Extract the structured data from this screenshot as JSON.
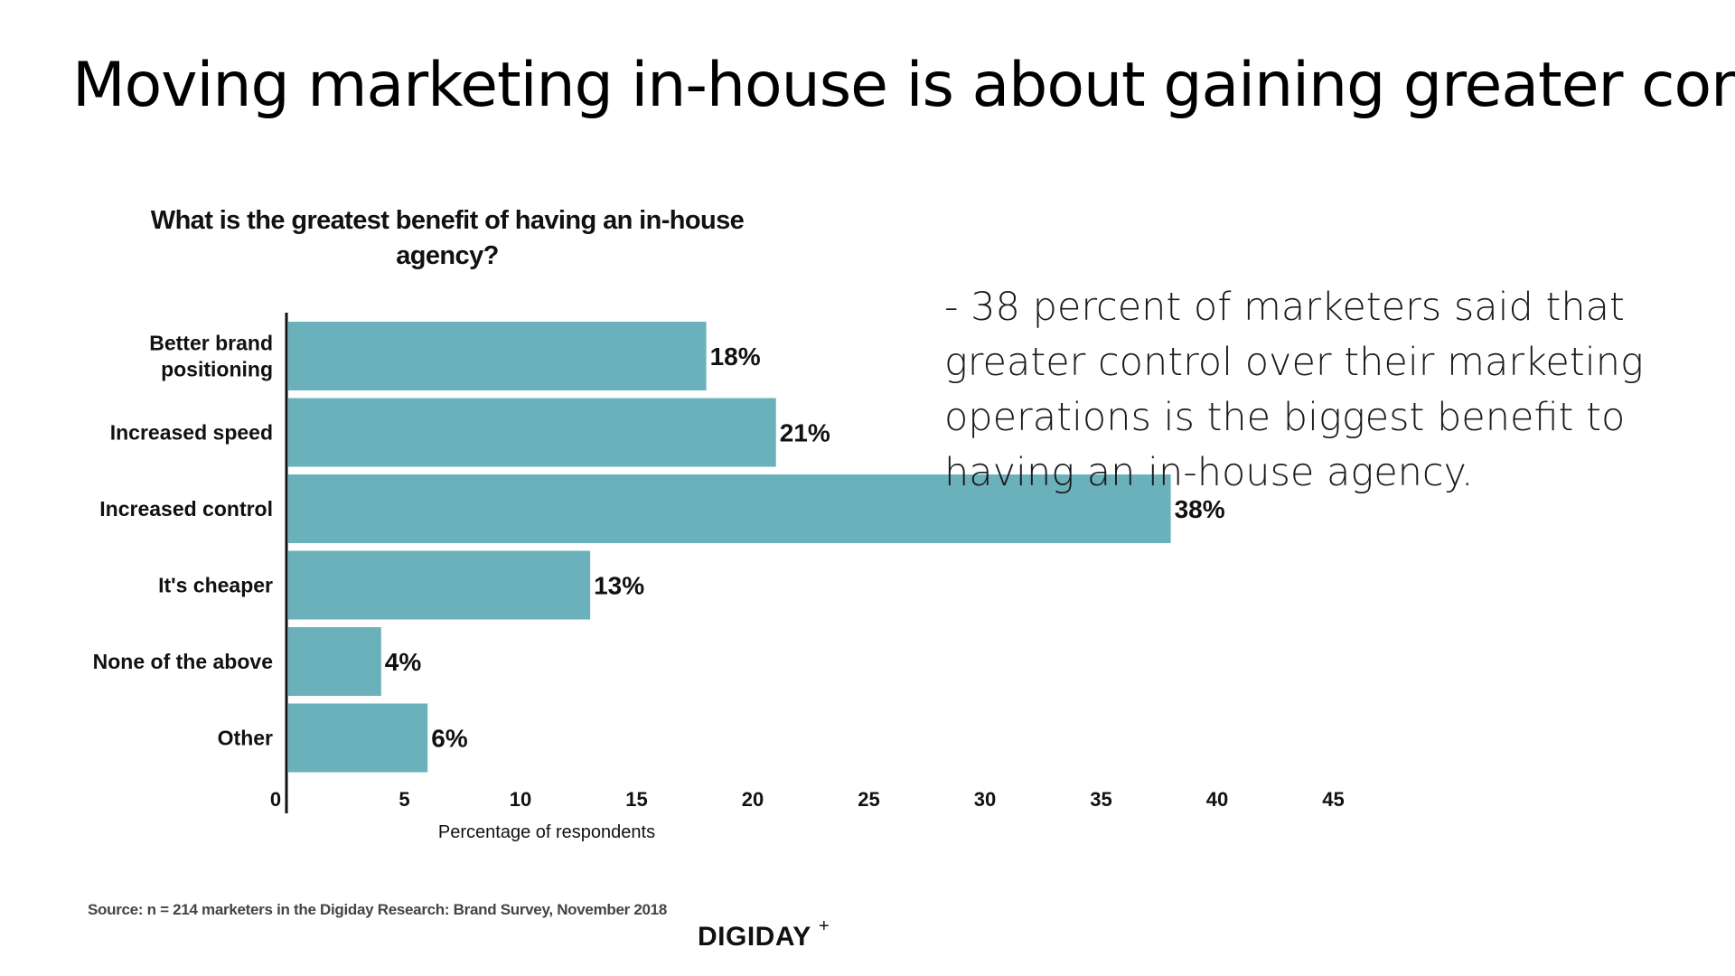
{
  "slide": {
    "title": "Moving marketing in-house is about gaining greater control",
    "bullet": "- 38 percent of marketers said that greater control over their marketing operations is the biggest benefit to having an in-house agency.",
    "source": "Source: n = 214 marketers in the Digiday Research: Brand Survey, November 2018",
    "logo": "DIGIDAY",
    "logo_plus": "+"
  },
  "colors": {
    "bar": "#6ab1bb",
    "axis": "#111111",
    "text": "#111111"
  },
  "chart_data": {
    "type": "bar",
    "orientation": "horizontal",
    "title": "What is the greatest benefit of having an in-house agency?",
    "title_lines": [
      "What is the greatest benefit of having an in-house",
      "agency?"
    ],
    "xlabel": "Percentage of respondents",
    "ylabel": "",
    "xlim": [
      0,
      45
    ],
    "xticks": [
      0,
      5,
      10,
      15,
      20,
      25,
      30,
      35,
      40,
      45
    ],
    "categories": [
      [
        "Better brand",
        "positioning"
      ],
      [
        "Increased speed"
      ],
      [
        "Increased control"
      ],
      [
        "It's cheaper"
      ],
      [
        "None of the above"
      ],
      [
        "Other"
      ]
    ],
    "values": [
      18,
      21,
      38,
      13,
      4,
      6
    ],
    "data_labels": [
      "18%",
      "21%",
      "38%",
      "13%",
      "4%",
      "6%"
    ],
    "grid": false,
    "legend": "none"
  }
}
